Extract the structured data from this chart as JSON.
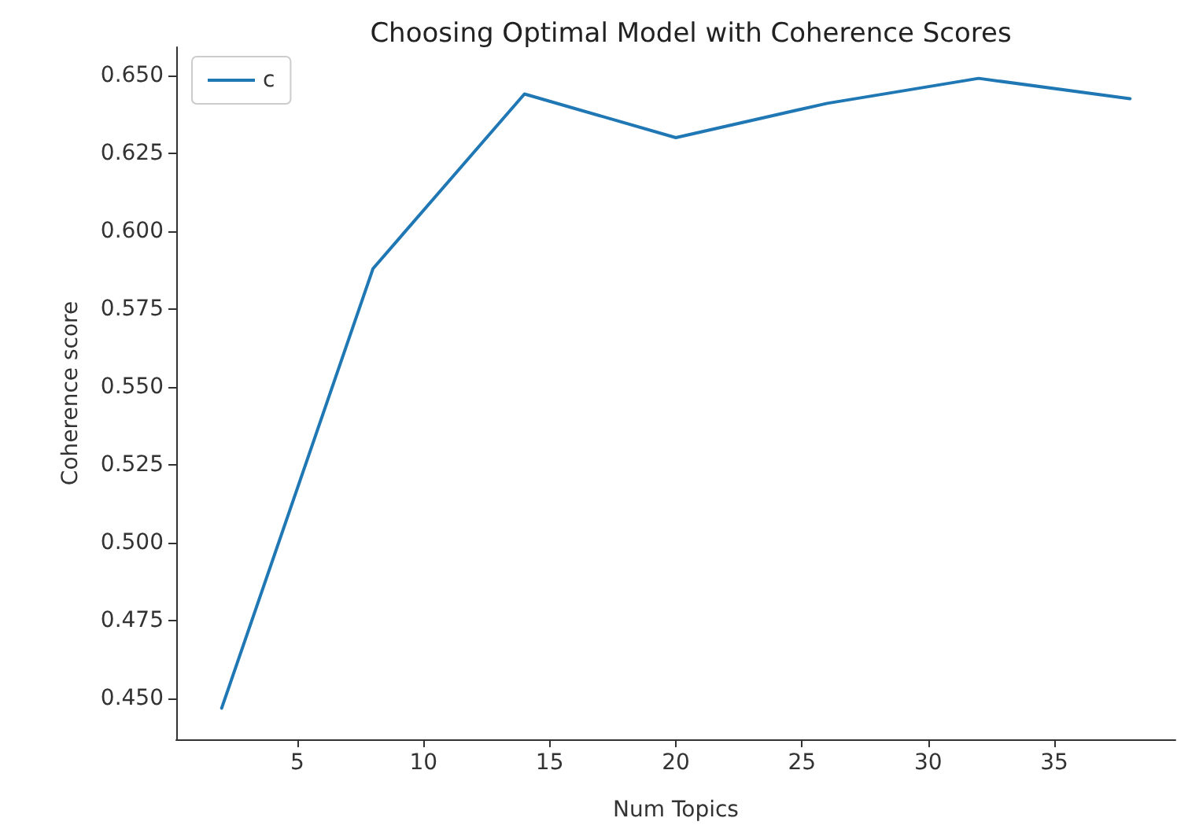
{
  "chart_data": {
    "type": "line",
    "title": "Choosing Optimal Model with Coherence Scores",
    "xlabel": "Num Topics",
    "ylabel": "Coherence score",
    "x": [
      2,
      8,
      14,
      20,
      26,
      32,
      38
    ],
    "series": [
      {
        "name": "c",
        "color": "#1f77b4",
        "values": [
          0.447,
          0.588,
          0.644,
          0.63,
          0.641,
          0.649,
          0.6425
        ]
      }
    ],
    "xlim": [
      0.2,
      39.8
    ],
    "xticks": [
      5,
      10,
      15,
      20,
      25,
      30,
      35
    ],
    "ylim": [
      0.437,
      0.659
    ],
    "yticks": [
      {
        "value": 0.45,
        "label": "0.450"
      },
      {
        "value": 0.475,
        "label": "0.475"
      },
      {
        "value": 0.5,
        "label": "0.500"
      },
      {
        "value": 0.525,
        "label": "0.525"
      },
      {
        "value": 0.55,
        "label": "0.550"
      },
      {
        "value": 0.575,
        "label": "0.575"
      },
      {
        "value": 0.6,
        "label": "0.600"
      },
      {
        "value": 0.625,
        "label": "0.625"
      },
      {
        "value": 0.65,
        "label": "0.650"
      }
    ],
    "grid": false,
    "legend": "top left",
    "marker": "none",
    "line_style": "solid"
  }
}
